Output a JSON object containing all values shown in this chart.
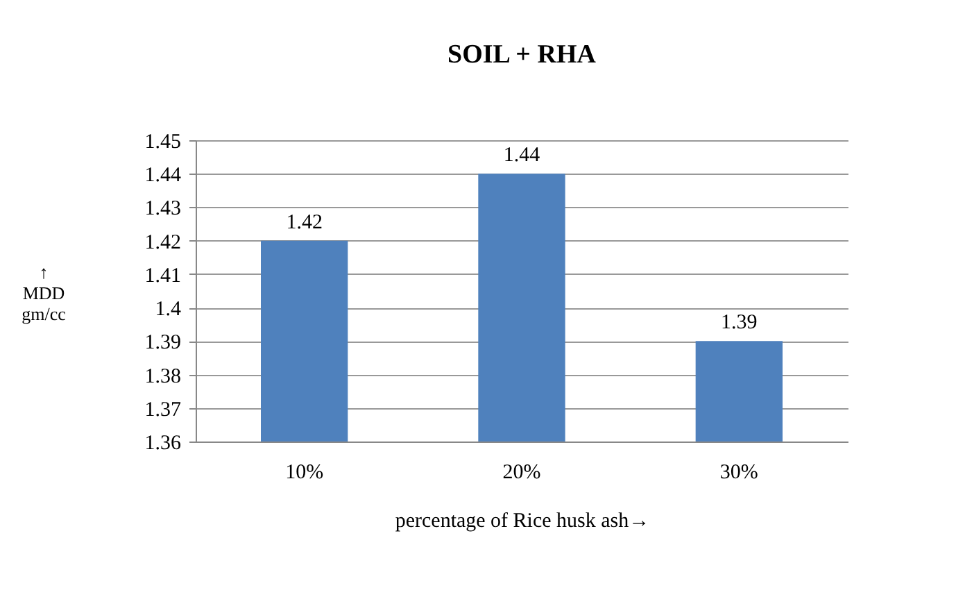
{
  "chart_data": {
    "type": "bar",
    "title": "SOIL + RHA",
    "xlabel": "percentage of Rice husk ash→",
    "ylabel": "↑\nMDD\ngm/cc",
    "categories": [
      "10%",
      "20%",
      "30%",
      null
    ],
    "values": [
      1.42,
      1.44,
      1.39,
      null
    ],
    "color": "#4f81bd",
    "ylim": [
      1.36,
      1.45
    ],
    "yticks": [
      1.36,
      1.37,
      1.38,
      1.39,
      1.4,
      1.41,
      1.42,
      1.43,
      1.44,
      1.45
    ],
    "grid": "y",
    "data_labels": true
  }
}
